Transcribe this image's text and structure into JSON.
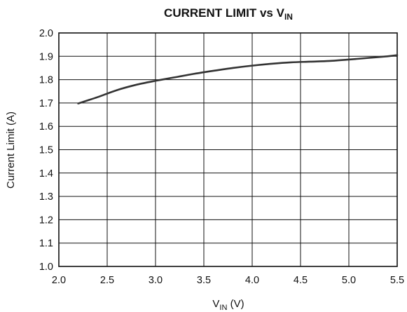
{
  "chart_data": {
    "type": "line",
    "title": {
      "main": "CURRENT LIMIT vs V",
      "subscript": "IN"
    },
    "xlabel": {
      "prefix": "V",
      "subscript": "IN",
      "suffix": " (V)"
    },
    "ylabel": "Current Limit (A)",
    "xlim": [
      2.0,
      5.5
    ],
    "ylim": [
      1.0,
      2.0
    ],
    "x_ticks": [
      2.0,
      2.5,
      3.0,
      3.5,
      4.0,
      4.5,
      5.0,
      5.5
    ],
    "y_ticks": [
      1.0,
      1.1,
      1.2,
      1.3,
      1.4,
      1.5,
      1.6,
      1.7,
      1.8,
      1.9,
      2.0
    ],
    "x_tick_labels": [
      "2.0",
      "2.5",
      "3.0",
      "3.5",
      "4.0",
      "4.5",
      "5.0",
      "5.5"
    ],
    "y_tick_labels": [
      "1.0",
      "1.1",
      "1.2",
      "1.3",
      "1.4",
      "1.5",
      "1.6",
      "1.7",
      "1.8",
      "1.9",
      "2.0"
    ],
    "grid": true,
    "line_color": "#333333",
    "grid_color": "#111111",
    "series": [
      {
        "x": [
          2.2,
          2.4,
          2.6,
          2.8,
          3.0,
          3.2,
          3.4,
          3.6,
          3.8,
          4.0,
          4.2,
          4.4,
          4.6,
          4.8,
          5.0,
          5.2,
          5.4,
          5.5
        ],
        "y": [
          1.698,
          1.725,
          1.755,
          1.778,
          1.795,
          1.81,
          1.825,
          1.838,
          1.85,
          1.86,
          1.868,
          1.874,
          1.877,
          1.88,
          1.886,
          1.893,
          1.9,
          1.905
        ]
      }
    ]
  }
}
